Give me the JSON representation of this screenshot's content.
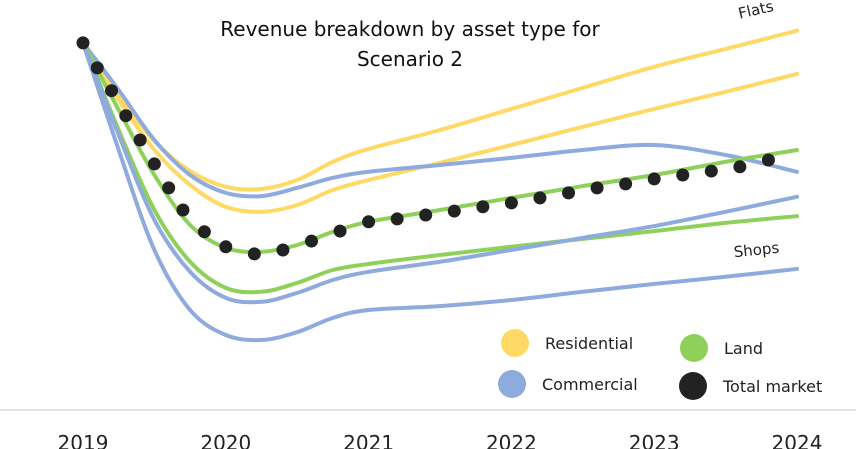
{
  "chart_data": {
    "type": "line",
    "title": "Revenue breakdown by asset type for Scenario 2",
    "x": [
      2019,
      2019.25,
      2019.5,
      2019.75,
      2020,
      2020.25,
      2020.5,
      2020.75,
      2021,
      2021.5,
      2022,
      2022.5,
      2023,
      2023.5,
      2024
    ],
    "xlim": [
      2019,
      2024
    ],
    "xticks": [
      2019,
      2020,
      2021,
      2022,
      2023,
      2024
    ],
    "ylim": [
      0,
      105
    ],
    "legend": [
      {
        "name": "Residential",
        "color": "#ffd966"
      },
      {
        "name": "Land",
        "color": "#8fd05a"
      },
      {
        "name": "Commercial",
        "color": "#8faadc"
      },
      {
        "name": "Total market",
        "color": "#222222"
      }
    ],
    "series": [
      {
        "color": "#ffd966",
        "values": [
          100,
          85.4,
          72.5,
          64.1,
          59.7,
          59.1,
          61.6,
          66.7,
          70.3,
          75.6,
          81.5,
          87.4,
          93.3,
          98.3,
          103.4
        ]
      },
      {
        "color": "#ffd966",
        "values": [
          100,
          84.0,
          70.0,
          60.2,
          54.1,
          52.7,
          54.6,
          58.8,
          61.6,
          66.4,
          71.4,
          76.5,
          81.5,
          86.3,
          91.3
        ]
      },
      {
        "color": "#8faadc",
        "values": [
          100,
          86.8,
          72.8,
          63.0,
          58.0,
          57.1,
          59.4,
          62.2,
          63.9,
          65.8,
          67.8,
          70.0,
          71.4,
          68.6,
          63.9
        ]
      },
      {
        "color": "#8fd05a",
        "values": [
          100,
          81.2,
          63.0,
          49.0,
          42.6,
          41.5,
          43.4,
          47.1,
          49.9,
          53.2,
          56.6,
          59.9,
          63.0,
          66.7,
          70.0
        ]
      },
      {
        "color": "#8fd05a",
        "values": [
          100,
          75.6,
          53.2,
          38.7,
          31.4,
          30.3,
          32.8,
          36.4,
          38.1,
          40.6,
          42.9,
          45.1,
          47.3,
          49.6,
          51.5
        ]
      },
      {
        "color": "#8faadc",
        "values": [
          100,
          74.2,
          50.4,
          35.9,
          28.6,
          27.5,
          30.0,
          33.6,
          35.9,
          38.7,
          42.0,
          45.4,
          48.7,
          52.7,
          56.9
        ]
      },
      {
        "color": "#8faadc",
        "values": [
          100,
          70.0,
          42.0,
          25.2,
          18.2,
          16.8,
          19.0,
          23.0,
          25.2,
          26.3,
          28.0,
          30.3,
          32.5,
          34.5,
          36.7
        ]
      }
    ],
    "total_market": {
      "color": "#222222",
      "x": [
        2019,
        2019.1,
        2019.2,
        2019.3,
        2019.4,
        2019.5,
        2019.6,
        2019.7,
        2019.85,
        2020,
        2020.2,
        2020.4,
        2020.6,
        2020.8,
        2021,
        2021.2,
        2021.4,
        2021.6,
        2021.8,
        2022,
        2022.2,
        2022.4,
        2022.6,
        2022.8,
        2023,
        2023.2,
        2023.4,
        2023.6,
        2023.8
      ],
      "values": [
        100,
        93,
        86.6,
        79.6,
        72.8,
        66.1,
        59.4,
        53.2,
        47.1,
        42.9,
        40.9,
        42.0,
        44.5,
        47.3,
        49.9,
        50.7,
        51.8,
        52.9,
        54.1,
        55.2,
        56.6,
        58.0,
        59.4,
        60.5,
        61.9,
        63.0,
        64.1,
        65.3,
        67.2
      ]
    },
    "annotations": [
      {
        "text": "Flats"
      },
      {
        "text": "Shops"
      }
    ]
  }
}
